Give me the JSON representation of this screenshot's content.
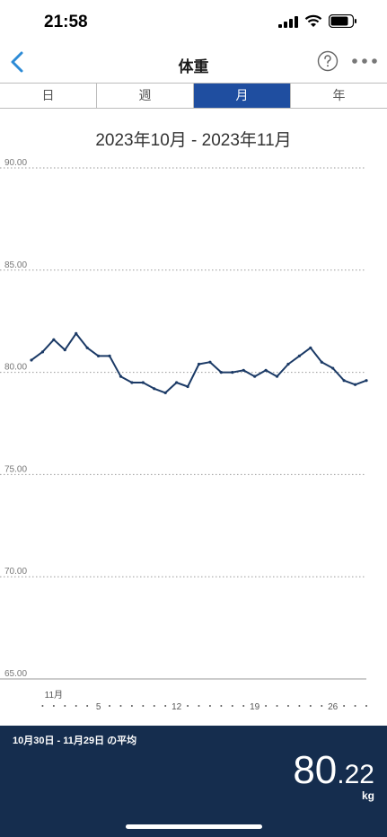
{
  "status_bar": {
    "time": "21:58"
  },
  "nav": {
    "title": "体重"
  },
  "tabs": [
    {
      "label": "日",
      "active": false
    },
    {
      "label": "週",
      "active": false
    },
    {
      "label": "月",
      "active": true
    },
    {
      "label": "年",
      "active": false
    }
  ],
  "range_title": "2023年10月 - 2023年11月",
  "chart_data": {
    "type": "line",
    "title": "",
    "xlabel": "",
    "ylabel": "",
    "ylim": [
      65,
      90
    ],
    "yticks": [
      "90.00",
      "85.00",
      "80.00",
      "75.00",
      "70.00",
      "65.00"
    ],
    "grid": true,
    "x": [
      "10/30",
      "10/31",
      "11/1",
      "11/2",
      "11/3",
      "11/4",
      "11/5",
      "11/6",
      "11/7",
      "11/8",
      "11/9",
      "11/10",
      "11/11",
      "11/12",
      "11/13",
      "11/14",
      "11/15",
      "11/16",
      "11/17",
      "11/18",
      "11/19",
      "11/20",
      "11/21",
      "11/22",
      "11/23",
      "11/24",
      "11/25",
      "11/26",
      "11/27",
      "11/28",
      "11/29"
    ],
    "x_tick_labels": [
      {
        "index": 2,
        "label": "11月"
      },
      {
        "index": 6,
        "label": "5"
      },
      {
        "index": 13,
        "label": "12"
      },
      {
        "index": 20,
        "label": "19"
      },
      {
        "index": 27,
        "label": "26"
      }
    ],
    "series": [
      {
        "color": "#1b3a66",
        "values": [
          80.6,
          81.0,
          81.6,
          81.1,
          81.9,
          81.2,
          80.8,
          80.8,
          79.8,
          79.5,
          79.5,
          79.2,
          79.0,
          79.5,
          79.3,
          80.4,
          80.5,
          80.0,
          80.0,
          80.1,
          79.8,
          80.1,
          79.8,
          80.4,
          80.8,
          81.2,
          80.5,
          80.2,
          79.6,
          79.4,
          79.6
        ]
      }
    ]
  },
  "summary": {
    "label": "10月30日 - 11月29日 の平均",
    "value_int": "80",
    "value_dec": ".22",
    "unit": "kg"
  }
}
